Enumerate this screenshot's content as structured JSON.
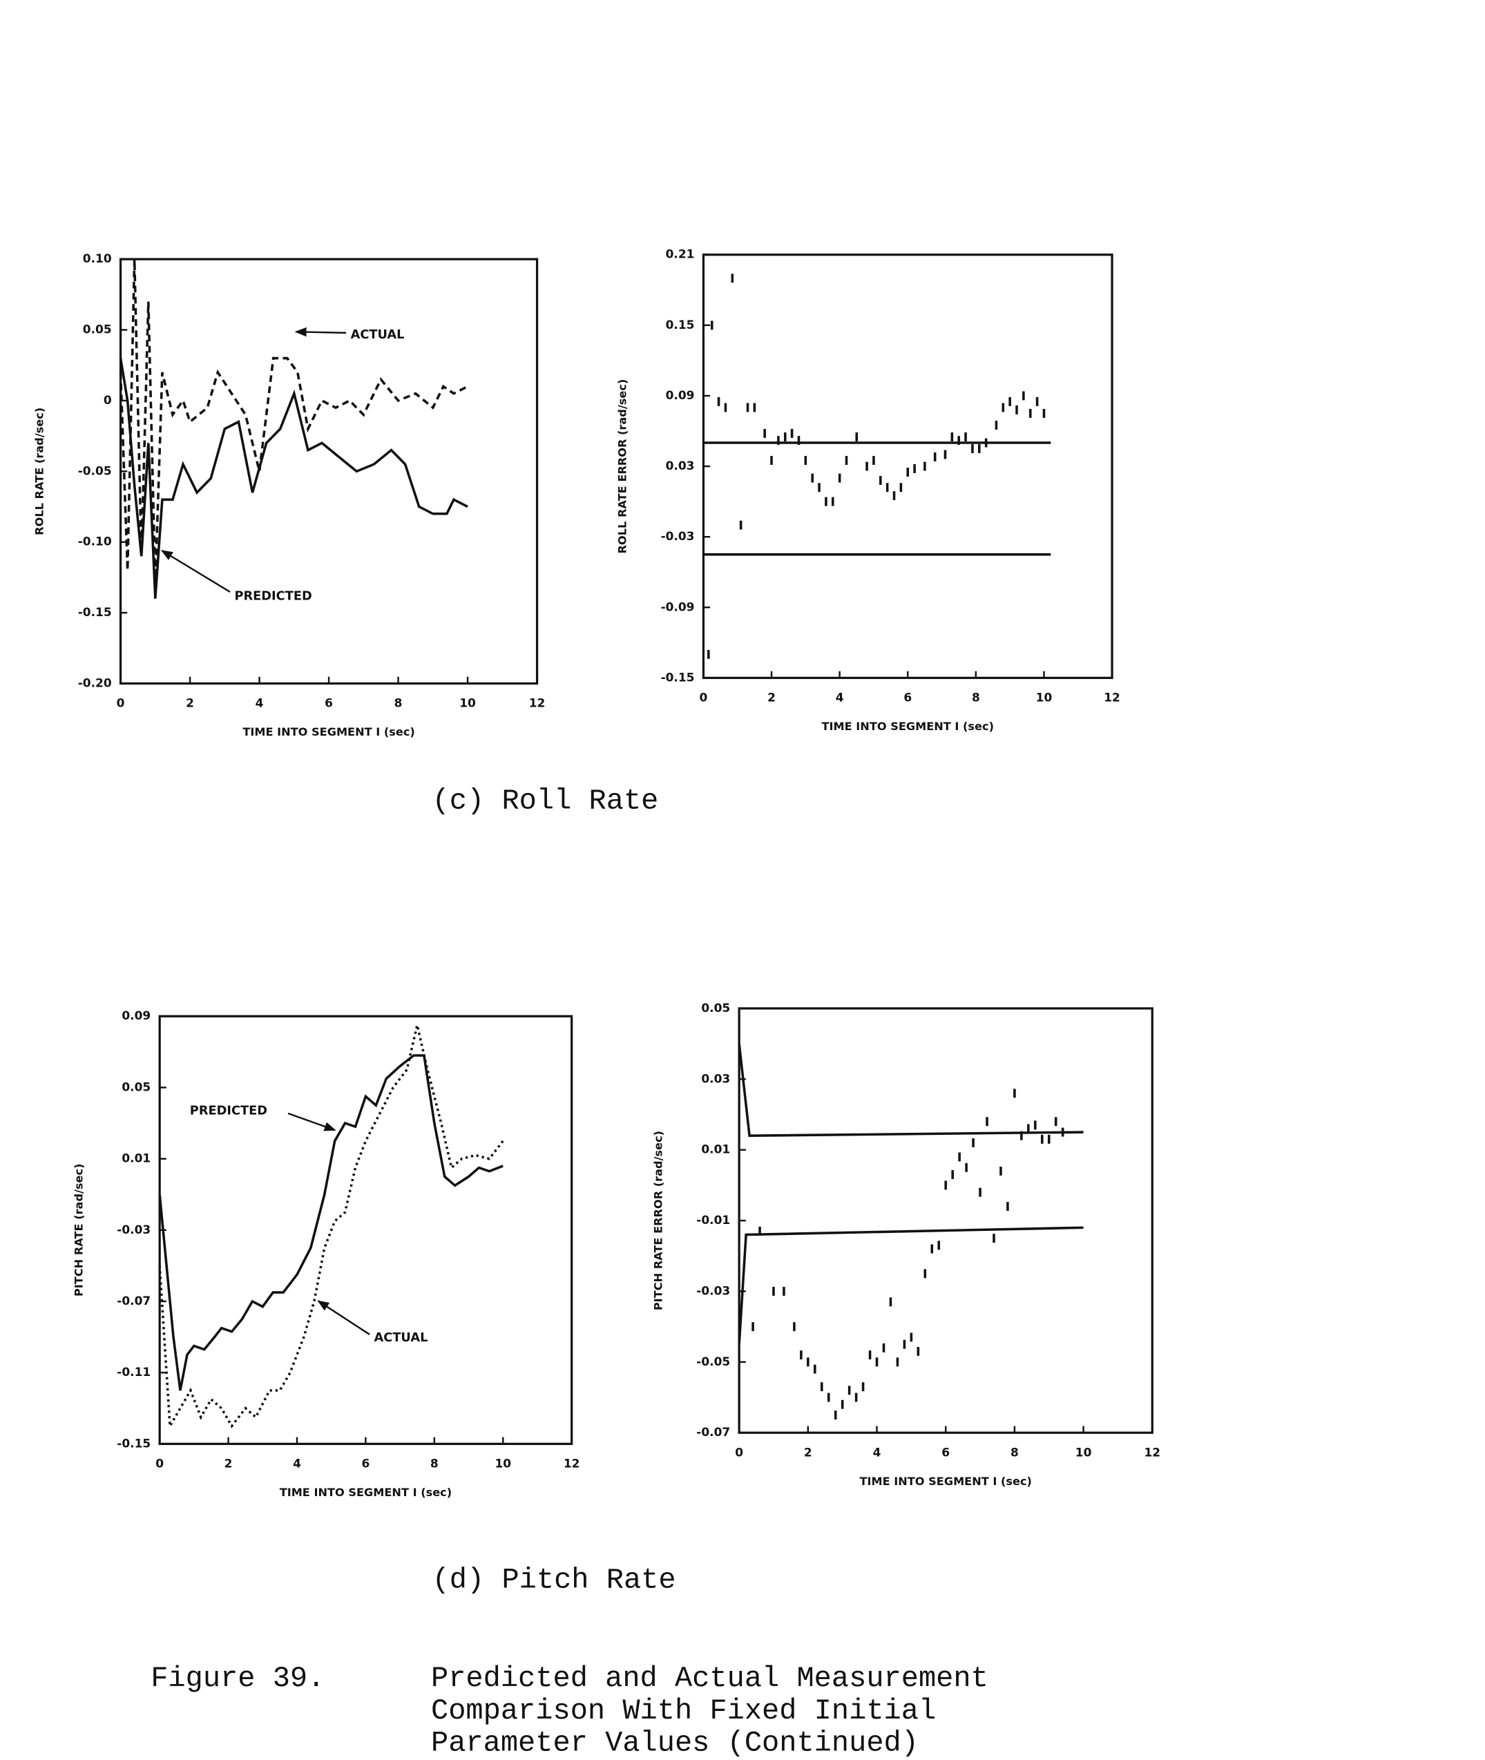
{
  "chart_data": [
    {
      "type": "line",
      "xlabel": "TIME INTO SEGMENT I (sec)",
      "ylabel": "ROLL RATE (rad/sec)",
      "xlim": [
        0,
        12
      ],
      "xticks": [
        0,
        2,
        4,
        6,
        8,
        10,
        12
      ],
      "ylim": [
        -0.2,
        0.1
      ],
      "yticks": [
        {
          "value": 0.1,
          "label": "0.10"
        },
        0.05,
        0,
        -0.05,
        {
          "value": -0.1,
          "label": "-0.10"
        },
        -0.15,
        {
          "value": -0.2,
          "label": "-0.20"
        }
      ],
      "series": [
        {
          "name": "PREDICTED",
          "color": "#111111",
          "style": "solid",
          "x": [
            0,
            0.2,
            0.4,
            0.6,
            0.8,
            1.0,
            1.2,
            1.5,
            1.8,
            2.2,
            2.6,
            3.0,
            3.4,
            3.8,
            4.2,
            4.6,
            5.0,
            5.4,
            5.8,
            6.3,
            6.8,
            7.3,
            7.8,
            8.2,
            8.6,
            9.0,
            9.4,
            9.6,
            10
          ],
          "values": [
            0.03,
            0.0,
            -0.06,
            -0.11,
            -0.03,
            -0.14,
            -0.07,
            -0.07,
            -0.045,
            -0.065,
            -0.055,
            -0.02,
            -0.015,
            -0.065,
            -0.03,
            -0.02,
            0.005,
            -0.035,
            -0.03,
            -0.04,
            -0.05,
            -0.045,
            -0.035,
            -0.045,
            -0.075,
            -0.08,
            -0.08,
            -0.07,
            -0.075
          ]
        },
        {
          "name": "ACTUAL",
          "color": "#111111",
          "style": "dashed",
          "x": [
            0,
            0.2,
            0.4,
            0.6,
            0.8,
            1.0,
            1.2,
            1.5,
            1.8,
            2.0,
            2.5,
            2.8,
            3.2,
            3.6,
            4.0,
            4.4,
            4.8,
            5.1,
            5.4,
            5.8,
            6.2,
            6.6,
            7.0,
            7.5,
            8.0,
            8.5,
            9.0,
            9.3,
            9.6,
            10
          ],
          "values": [
            0.02,
            -0.12,
            0.1,
            -0.11,
            0.07,
            -0.13,
            0.02,
            -0.01,
            0.0,
            -0.015,
            -0.005,
            0.02,
            0.005,
            -0.01,
            -0.05,
            0.03,
            0.03,
            0.02,
            -0.02,
            0.0,
            -0.005,
            0.0,
            -0.01,
            0.015,
            0.0,
            0.005,
            -0.005,
            0.01,
            0.005,
            0.01
          ]
        }
      ]
    },
    {
      "type": "scatter",
      "xlabel": "TIME INTO SEGMENT I (sec)",
      "ylabel": "ROLL RATE ERROR (rad/sec)",
      "xlim": [
        0,
        12
      ],
      "xticks": [
        0,
        2,
        4,
        6,
        8,
        10,
        12
      ],
      "ylim": [
        -0.15,
        0.21
      ],
      "yticks": [
        0.21,
        0.15,
        0.09,
        0.03,
        -0.03,
        -0.09,
        -0.15
      ],
      "color": "#111111",
      "x": [
        0.15,
        0.25,
        0.45,
        0.65,
        0.85,
        1.1,
        1.3,
        1.5,
        1.8,
        2.0,
        2.2,
        2.4,
        2.6,
        2.8,
        3.0,
        3.2,
        3.4,
        3.6,
        3.8,
        4.0,
        4.2,
        4.5,
        4.8,
        5.0,
        5.2,
        5.4,
        5.6,
        5.8,
        6.0,
        6.2,
        6.5,
        6.8,
        7.1,
        7.3,
        7.5,
        7.7,
        7.9,
        8.1,
        8.3,
        8.6,
        8.8,
        9.0,
        9.2,
        9.4,
        9.6,
        9.8,
        10.0
      ],
      "values": [
        -0.13,
        0.15,
        0.085,
        0.08,
        0.19,
        -0.02,
        0.08,
        0.08,
        0.058,
        0.035,
        0.052,
        0.055,
        0.058,
        0.052,
        0.035,
        0.02,
        0.012,
        0.0,
        0.0,
        0.02,
        0.035,
        0.055,
        0.03,
        0.035,
        0.018,
        0.012,
        0.005,
        0.012,
        0.025,
        0.028,
        0.03,
        0.038,
        0.04,
        0.055,
        0.052,
        0.055,
        0.045,
        0.045,
        0.05,
        0.065,
        0.08,
        0.085,
        0.078,
        0.09,
        0.075,
        0.085,
        0.075
      ],
      "bounds": [
        {
          "x": [
            0,
            10.2
          ],
          "values": [
            0.05,
            0.05
          ]
        },
        {
          "x": [
            0,
            10.2
          ],
          "values": [
            -0.045,
            -0.045
          ]
        }
      ]
    },
    {
      "type": "line",
      "xlabel": "TIME INTO SEGMENT I (sec)",
      "ylabel": "PITCH RATE (rad/sec)",
      "xlim": [
        0,
        12
      ],
      "xticks": [
        0,
        2,
        4,
        6,
        8,
        10,
        12
      ],
      "ylim": [
        -0.15,
        0.09
      ],
      "yticks": [
        0.09,
        0.05,
        0.01,
        -0.03,
        -0.07,
        -0.11,
        -0.15
      ],
      "series": [
        {
          "name": "PREDICTED",
          "color": "#111111",
          "style": "solid",
          "x": [
            0,
            0.2,
            0.4,
            0.6,
            0.8,
            1.0,
            1.3,
            1.6,
            1.8,
            2.1,
            2.4,
            2.7,
            3.0,
            3.3,
            3.6,
            4.0,
            4.4,
            4.8,
            5.1,
            5.4,
            5.7,
            6.0,
            6.3,
            6.6,
            7.0,
            7.4,
            7.7,
            8.0,
            8.3,
            8.6,
            9.0,
            9.3,
            9.6,
            10
          ],
          "values": [
            -0.01,
            -0.05,
            -0.09,
            -0.12,
            -0.1,
            -0.095,
            -0.097,
            -0.09,
            -0.085,
            -0.087,
            -0.08,
            -0.07,
            -0.073,
            -0.065,
            -0.065,
            -0.055,
            -0.04,
            -0.01,
            0.02,
            0.03,
            0.028,
            0.045,
            0.04,
            0.055,
            0.062,
            0.068,
            0.068,
            0.03,
            0.0,
            -0.005,
            0.0,
            0.005,
            0.003,
            0.006
          ]
        },
        {
          "name": "ACTUAL",
          "color": "#111111",
          "style": "dotted",
          "x": [
            0,
            0.3,
            0.6,
            0.9,
            1.2,
            1.5,
            1.8,
            2.1,
            2.5,
            2.8,
            3.2,
            3.5,
            3.8,
            4.2,
            4.5,
            4.8,
            5.1,
            5.4,
            5.7,
            6.0,
            6.4,
            6.8,
            7.2,
            7.5,
            7.8,
            8.2,
            8.5,
            8.8,
            9.2,
            9.6,
            10
          ],
          "values": [
            -0.05,
            -0.14,
            -0.13,
            -0.12,
            -0.135,
            -0.125,
            -0.13,
            -0.14,
            -0.13,
            -0.135,
            -0.12,
            -0.12,
            -0.11,
            -0.09,
            -0.07,
            -0.04,
            -0.025,
            -0.02,
            0.005,
            0.02,
            0.035,
            0.05,
            0.06,
            0.085,
            0.06,
            0.03,
            0.005,
            0.01,
            0.012,
            0.01,
            0.02
          ]
        }
      ]
    },
    {
      "type": "scatter",
      "xlabel": "TIME INTO SEGMENT I (sec)",
      "ylabel": "PITCH RATE ERROR (rad/sec)",
      "xlim": [
        0,
        12
      ],
      "xticks": [
        0,
        2,
        4,
        6,
        8,
        10,
        12
      ],
      "ylim": [
        -0.07,
        0.05
      ],
      "yticks": [
        0.05,
        0.03,
        0.01,
        -0.01,
        -0.03,
        -0.05,
        -0.07
      ],
      "color": "#111111",
      "x": [
        0.4,
        0.6,
        1.0,
        1.3,
        1.6,
        1.8,
        2.0,
        2.2,
        2.4,
        2.6,
        2.8,
        3.0,
        3.2,
        3.4,
        3.6,
        3.8,
        4.0,
        4.2,
        4.4,
        4.6,
        4.8,
        5.0,
        5.2,
        5.4,
        5.6,
        5.8,
        6.0,
        6.2,
        6.4,
        6.6,
        6.8,
        7.0,
        7.2,
        7.4,
        7.6,
        7.8,
        8.0,
        8.2,
        8.4,
        8.6,
        8.8,
        9.0,
        9.2,
        9.4
      ],
      "values": [
        -0.04,
        -0.013,
        -0.03,
        -0.03,
        -0.04,
        -0.048,
        -0.05,
        -0.052,
        -0.057,
        -0.06,
        -0.065,
        -0.062,
        -0.058,
        -0.06,
        -0.057,
        -0.048,
        -0.05,
        -0.046,
        -0.033,
        -0.05,
        -0.045,
        -0.043,
        -0.047,
        -0.025,
        -0.018,
        -0.017,
        0.0,
        0.003,
        0.008,
        0.005,
        0.012,
        -0.002,
        0.018,
        -0.015,
        0.004,
        -0.006,
        0.026,
        0.014,
        0.016,
        0.017,
        0.013,
        0.013,
        0.018,
        0.015
      ],
      "bounds": [
        {
          "x": [
            0,
            0.3,
            10
          ],
          "values": [
            0.04,
            0.014,
            0.015
          ]
        },
        {
          "x": [
            0,
            0.2,
            10
          ],
          "values": [
            -0.045,
            -0.014,
            -0.012
          ]
        }
      ]
    }
  ],
  "captions": [
    "(c)  Roll Rate",
    "(d)  Pitch Rate"
  ],
  "figure": {
    "label": "Figure 39.",
    "lines": [
      "Predicted and Actual Measurement",
      "Comparison With Fixed Initial",
      "Parameter Values (Continued)"
    ]
  }
}
